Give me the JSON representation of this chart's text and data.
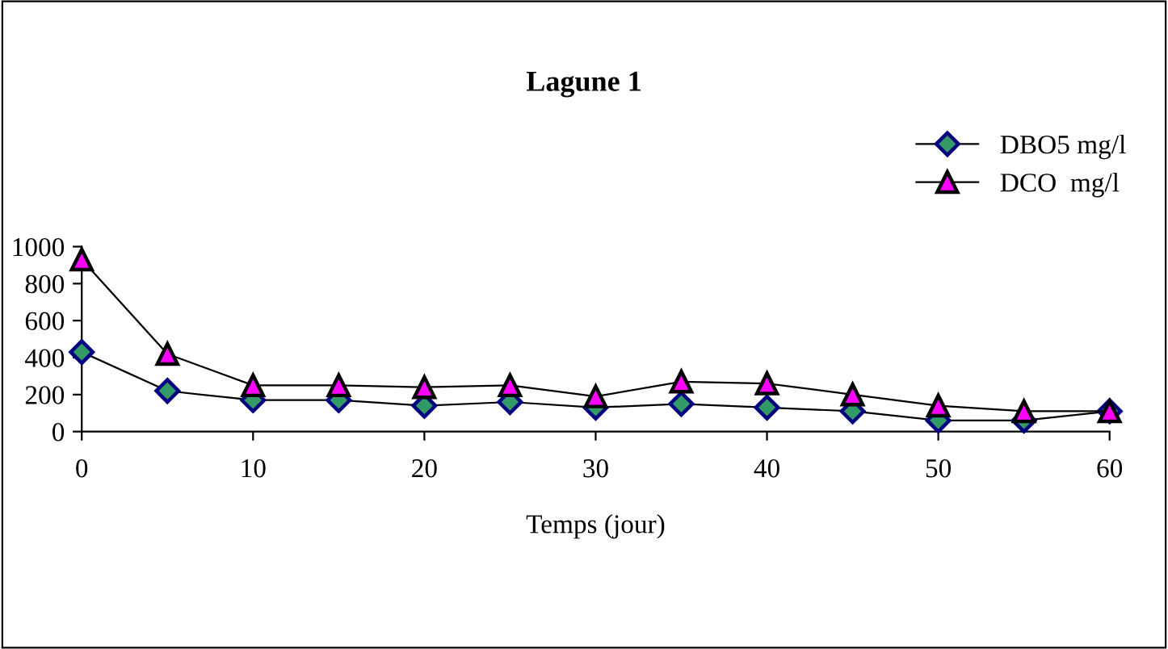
{
  "chart_data": {
    "type": "line",
    "title": "Lagune 1",
    "xlabel": "Temps (jour)",
    "x": [
      0,
      5,
      10,
      15,
      20,
      25,
      30,
      35,
      40,
      45,
      50,
      55,
      60
    ],
    "series": [
      {
        "name": "DBO5 mg/l",
        "color": "#339966",
        "marker": "diamond",
        "values": [
          430,
          220,
          170,
          170,
          140,
          160,
          130,
          150,
          130,
          110,
          60,
          60,
          110
        ]
      },
      {
        "name": "DCO  mg/l",
        "color": "#ff00ff",
        "marker": "triangle",
        "values": [
          930,
          420,
          250,
          250,
          240,
          250,
          190,
          270,
          260,
          200,
          140,
          110,
          110
        ]
      }
    ],
    "xlim": [
      0,
      60
    ],
    "xticks": [
      0,
      10,
      20,
      30,
      40,
      50,
      60
    ],
    "ylim": [
      0,
      1000
    ],
    "yticks": [
      0,
      200,
      400,
      600,
      800,
      1000
    ],
    "grid": false,
    "legend": "top right",
    "line_style": "solid"
  }
}
